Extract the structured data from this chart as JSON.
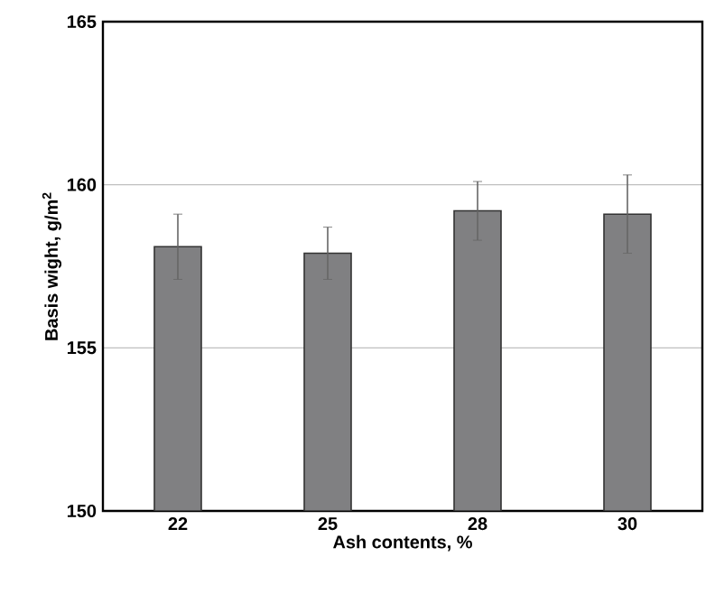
{
  "chart_data": {
    "type": "bar",
    "xlabel": "Ash contents, %",
    "ylabel": "Basis wight, g/m$^{2}$",
    "categories": [
      "22",
      "25",
      "28",
      "30"
    ],
    "values": [
      158.1,
      157.9,
      159.2,
      159.1
    ],
    "errors": [
      1.0,
      0.8,
      0.9,
      1.2
    ],
    "color": "#808082",
    "ylim": [
      150,
      165
    ],
    "yticks": [
      150,
      155,
      160,
      165
    ],
    "grid": "y"
  }
}
